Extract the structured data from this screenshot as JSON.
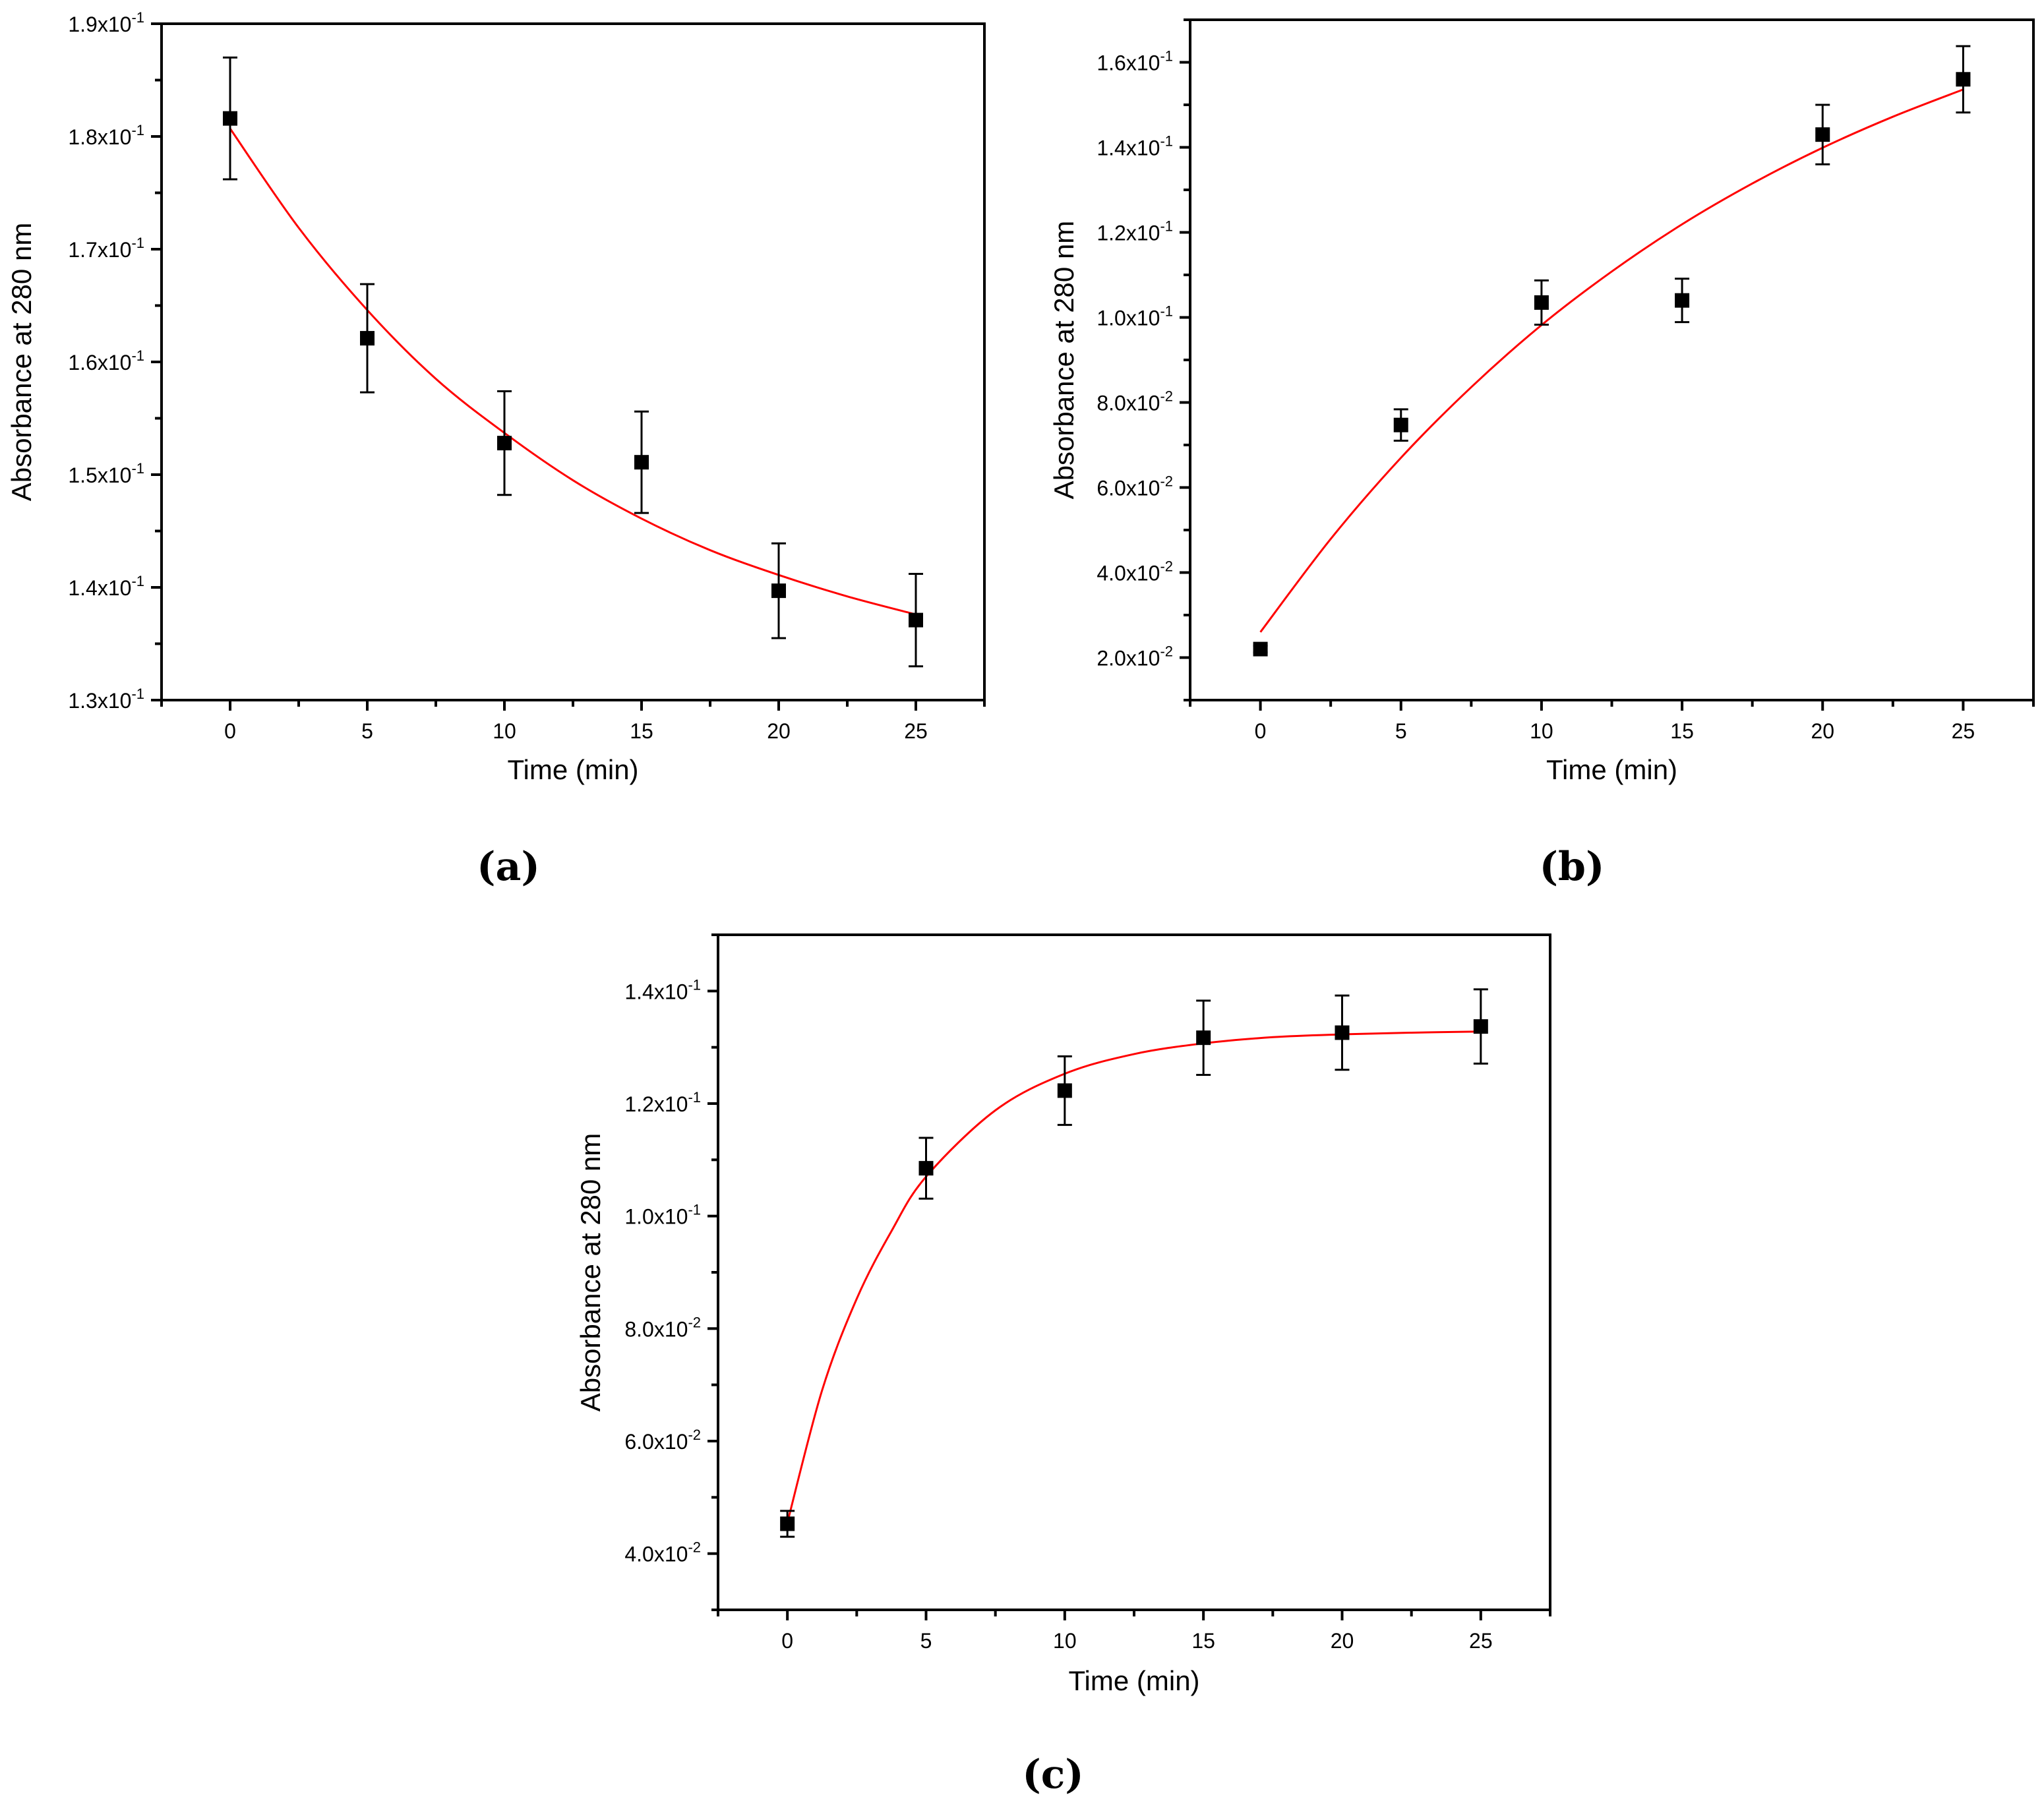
{
  "colors": {
    "points": "#000000",
    "fit": "#ff0000",
    "axes": "#000000"
  },
  "chart_data": [
    {
      "panel_label": "(a)",
      "type": "scatter",
      "xlabel": "Time (min)",
      "ylabel": "Absorbance at 280 nm",
      "xlim": [
        -2.5,
        27.5
      ],
      "ylim": [
        0.13,
        0.19
      ],
      "x_ticks": [
        0,
        5,
        10,
        15,
        20,
        25
      ],
      "y_ticks": [
        {
          "value": 0.13,
          "label": "1.3x10",
          "exp": "-1"
        },
        {
          "value": 0.14,
          "label": "1.4x10",
          "exp": "-1"
        },
        {
          "value": 0.15,
          "label": "1.5x10",
          "exp": "-1"
        },
        {
          "value": 0.16,
          "label": "1.6x10",
          "exp": "-1"
        },
        {
          "value": 0.17,
          "label": "1.7x10",
          "exp": "-1"
        },
        {
          "value": 0.18,
          "label": "1.8x10",
          "exp": "-1"
        },
        {
          "value": 0.19,
          "label": "1.9x10",
          "exp": "-1"
        }
      ],
      "grid": false,
      "points": {
        "x": [
          0,
          5,
          10,
          15,
          20,
          25
        ],
        "y": [
          0.1816,
          0.1621,
          0.1528,
          0.1511,
          0.1397,
          0.1371
        ],
        "err": [
          0.0054,
          0.0048,
          0.0046,
          0.0045,
          0.0042,
          0.0041
        ]
      },
      "fit": {
        "x": [
          0,
          2.5,
          5,
          7.5,
          10,
          12.5,
          15,
          17.5,
          20,
          22.5,
          25
        ],
        "y": [
          0.1807,
          0.1719,
          0.1646,
          0.1585,
          0.1537,
          0.1495,
          0.1461,
          0.1433,
          0.1411,
          0.1392,
          0.1376
        ]
      }
    },
    {
      "panel_label": "(b)",
      "type": "scatter",
      "xlabel": "Time (min)",
      "ylabel": "Absorbance at 280 nm",
      "xlim": [
        -2.5,
        27.5
      ],
      "ylim": [
        0.01,
        0.17
      ],
      "x_ticks": [
        0,
        5,
        10,
        15,
        20,
        25
      ],
      "y_ticks": [
        {
          "value": 0.02,
          "label": "2.0x10",
          "exp": "-2"
        },
        {
          "value": 0.04,
          "label": "4.0x10",
          "exp": "-2"
        },
        {
          "value": 0.06,
          "label": "6.0x10",
          "exp": "-2"
        },
        {
          "value": 0.08,
          "label": "8.0x10",
          "exp": "-2"
        },
        {
          "value": 0.1,
          "label": "1.0x10",
          "exp": "-1"
        },
        {
          "value": 0.12,
          "label": "1.2x10",
          "exp": "-1"
        },
        {
          "value": 0.14,
          "label": "1.4x10",
          "exp": "-1"
        },
        {
          "value": 0.16,
          "label": "1.6x10",
          "exp": "-1"
        }
      ],
      "grid": false,
      "points": {
        "x": [
          0,
          5,
          10,
          15,
          20,
          25
        ],
        "y": [
          0.022,
          0.0747,
          0.1035,
          0.104,
          0.143,
          0.156
        ],
        "err": [
          0.0008,
          0.0037,
          0.0052,
          0.0051,
          0.007,
          0.0078
        ]
      },
      "fit": {
        "x": [
          0,
          2.5,
          5,
          7.5,
          10,
          12.5,
          15,
          17.5,
          20,
          22.5,
          25
        ],
        "y": [
          0.026,
          0.0479,
          0.067,
          0.0836,
          0.0982,
          0.1108,
          0.1219,
          0.1315,
          0.1399,
          0.1472,
          0.1536
        ]
      }
    },
    {
      "panel_label": "(c)",
      "type": "scatter",
      "xlabel": "Time (min)",
      "ylabel": "Absorbance at 280 nm",
      "xlim": [
        -2.5,
        27.5
      ],
      "ylim": [
        0.03,
        0.15
      ],
      "x_ticks": [
        0,
        5,
        10,
        15,
        20,
        25
      ],
      "y_ticks": [
        {
          "value": 0.04,
          "label": "4.0x10",
          "exp": "-2"
        },
        {
          "value": 0.06,
          "label": "6.0x10",
          "exp": "-2"
        },
        {
          "value": 0.08,
          "label": "8.0x10",
          "exp": "-2"
        },
        {
          "value": 0.1,
          "label": "1.0x10",
          "exp": "-1"
        },
        {
          "value": 0.12,
          "label": "1.2x10",
          "exp": "-1"
        },
        {
          "value": 0.14,
          "label": "1.4x10",
          "exp": "-1"
        }
      ],
      "grid": false,
      "points": {
        "x": [
          0,
          5,
          10,
          15,
          20,
          25
        ],
        "y": [
          0.0453,
          0.1085,
          0.1223,
          0.1317,
          0.1326,
          0.1337
        ],
        "err": [
          0.0023,
          0.0054,
          0.0061,
          0.0066,
          0.0066,
          0.0066
        ]
      },
      "fit": {
        "x": [
          0,
          1.25,
          2.5,
          3.75,
          5,
          7.5,
          10,
          12.5,
          15,
          17.5,
          20,
          22.5,
          25
        ],
        "y": [
          0.0455,
          0.069,
          0.0853,
          0.0973,
          0.107,
          0.1188,
          0.1253,
          0.1288,
          0.1307,
          0.1318,
          0.1323,
          0.1326,
          0.1328
        ]
      }
    }
  ]
}
